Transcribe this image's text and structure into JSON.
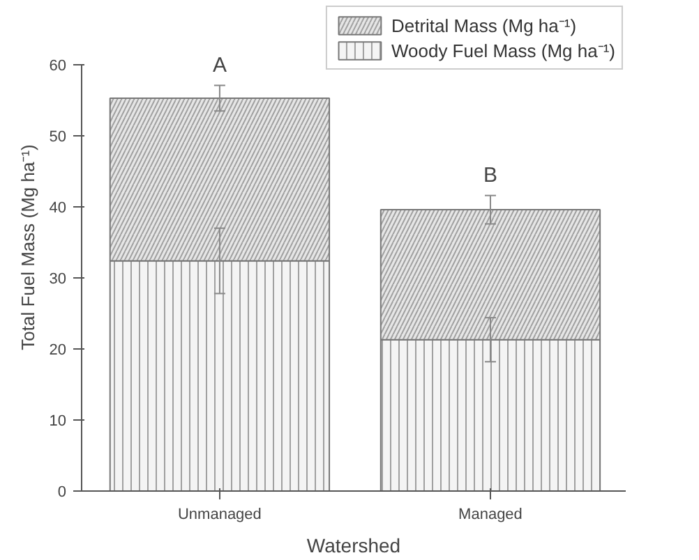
{
  "chart_data": {
    "type": "bar",
    "stacked": true,
    "xlabel": "Watershed",
    "ylabel": "Total Fuel Mass (Mg ha⁻¹)",
    "categories": [
      "Unmanaged",
      "Managed"
    ],
    "series": [
      {
        "name": "Woody Fuel Mass (Mg ha⁻¹)",
        "color": "#f4f4f4",
        "values": [
          32.4,
          21.3
        ],
        "errors": [
          4.6,
          3.1
        ]
      },
      {
        "name": "Detrital Mass (Mg ha⁻¹)",
        "color": "#e6e6e6",
        "values": [
          22.9,
          18.3
        ],
        "errors": [
          1.8,
          2.0
        ]
      }
    ],
    "ylim": [
      0,
      60
    ],
    "yticks": [
      0,
      10,
      20,
      30,
      40,
      50,
      60
    ],
    "grid": false,
    "legend": "top right",
    "annotations": [
      "A",
      "B"
    ]
  }
}
